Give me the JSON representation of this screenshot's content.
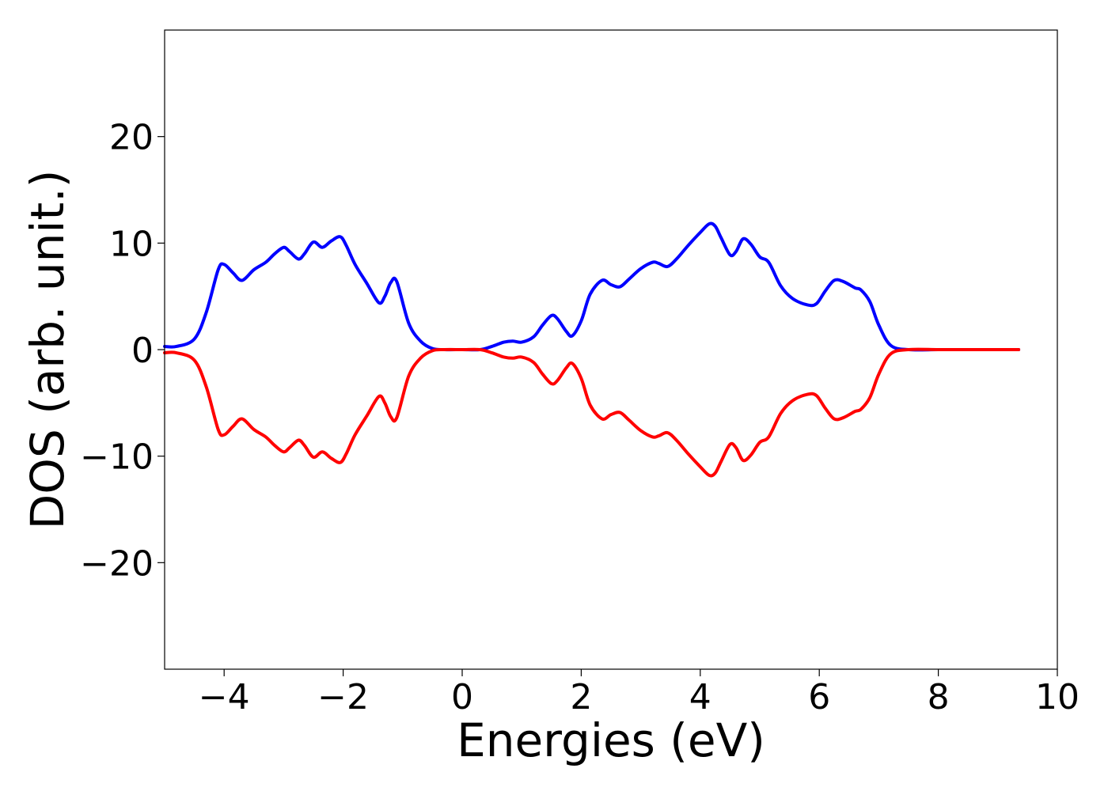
{
  "chart_data": {
    "type": "line",
    "title": "",
    "xlabel": "Energies (eV)",
    "ylabel": "DOS (arb. unit.)",
    "xlim": [
      -5,
      10
    ],
    "ylim": [
      -30,
      30
    ],
    "xticks": [
      -4,
      -2,
      0,
      2,
      4,
      6,
      8,
      10
    ],
    "xtick_labels": [
      "−4",
      "−2",
      "0",
      "2",
      "4",
      "6",
      "8",
      "10"
    ],
    "yticks": [
      -20,
      -10,
      0,
      10,
      20
    ],
    "ytick_labels": [
      "−20",
      "−10",
      "0",
      "10",
      "20"
    ],
    "grid": false,
    "legend": "none",
    "series": [
      {
        "color": "#0000ff",
        "x": [
          -5.0,
          -4.8,
          -4.5,
          -4.3,
          -4.1,
          -4.0,
          -3.85,
          -3.7,
          -3.5,
          -3.3,
          -3.15,
          -3.0,
          -2.9,
          -2.75,
          -2.65,
          -2.5,
          -2.35,
          -2.2,
          -2.05,
          -1.95,
          -1.8,
          -1.6,
          -1.4,
          -1.3,
          -1.2,
          -1.1,
          -0.9,
          -0.7,
          -0.5,
          -0.3,
          0.0,
          0.3,
          0.5,
          0.7,
          0.85,
          1.0,
          1.2,
          1.35,
          1.5,
          1.6,
          1.75,
          1.85,
          2.0,
          2.15,
          2.35,
          2.5,
          2.65,
          2.8,
          3.0,
          3.2,
          3.3,
          3.45,
          3.6,
          3.8,
          4.0,
          4.15,
          4.25,
          4.35,
          4.5,
          4.6,
          4.72,
          4.85,
          5.0,
          5.15,
          5.35,
          5.55,
          5.8,
          5.95,
          6.1,
          6.25,
          6.4,
          6.6,
          6.7,
          6.85,
          7.0,
          7.2,
          7.5,
          8.0,
          8.5,
          9.0,
          9.35
        ],
        "values": [
          0.3,
          0.3,
          1.0,
          3.5,
          7.5,
          8.0,
          7.2,
          6.5,
          7.5,
          8.2,
          9.0,
          9.6,
          9.2,
          8.5,
          9.0,
          10.1,
          9.6,
          10.2,
          10.6,
          9.8,
          8.0,
          6.2,
          4.4,
          5.0,
          6.3,
          6.4,
          2.5,
          0.8,
          0.1,
          0.0,
          0.0,
          0.0,
          0.3,
          0.7,
          0.8,
          0.7,
          1.2,
          2.3,
          3.2,
          2.9,
          1.7,
          1.3,
          2.7,
          5.2,
          6.5,
          6.1,
          5.9,
          6.6,
          7.6,
          8.2,
          8.1,
          7.8,
          8.5,
          9.8,
          11.0,
          11.8,
          11.6,
          10.5,
          8.9,
          9.2,
          10.4,
          9.9,
          8.7,
          8.2,
          6.0,
          4.8,
          4.2,
          4.3,
          5.5,
          6.5,
          6.4,
          5.8,
          5.6,
          4.5,
          2.3,
          0.4,
          0.0,
          0.0,
          0.0,
          0.0,
          0.0
        ]
      },
      {
        "color": "#ff0000",
        "x": [
          -5.0,
          -4.8,
          -4.5,
          -4.3,
          -4.1,
          -4.0,
          -3.85,
          -3.7,
          -3.5,
          -3.3,
          -3.15,
          -3.0,
          -2.9,
          -2.75,
          -2.65,
          -2.5,
          -2.35,
          -2.2,
          -2.05,
          -1.95,
          -1.8,
          -1.6,
          -1.4,
          -1.3,
          -1.2,
          -1.1,
          -0.9,
          -0.7,
          -0.5,
          -0.3,
          0.0,
          0.3,
          0.5,
          0.7,
          0.85,
          1.0,
          1.2,
          1.35,
          1.5,
          1.6,
          1.75,
          1.85,
          2.0,
          2.15,
          2.35,
          2.5,
          2.65,
          2.8,
          3.0,
          3.2,
          3.3,
          3.45,
          3.6,
          3.8,
          4.0,
          4.15,
          4.25,
          4.35,
          4.5,
          4.6,
          4.72,
          4.85,
          5.0,
          5.15,
          5.35,
          5.55,
          5.8,
          5.95,
          6.1,
          6.25,
          6.4,
          6.6,
          6.7,
          6.85,
          7.0,
          7.2,
          7.5,
          8.0,
          8.5,
          9.0,
          9.35
        ],
        "values": [
          -0.3,
          -0.3,
          -1.0,
          -3.5,
          -7.5,
          -8.0,
          -7.2,
          -6.5,
          -7.5,
          -8.2,
          -9.0,
          -9.6,
          -9.2,
          -8.5,
          -9.0,
          -10.1,
          -9.6,
          -10.2,
          -10.6,
          -9.8,
          -8.0,
          -6.2,
          -4.4,
          -5.0,
          -6.3,
          -6.4,
          -2.5,
          -0.8,
          -0.1,
          0.0,
          0.0,
          0.0,
          -0.3,
          -0.7,
          -0.8,
          -0.7,
          -1.2,
          -2.3,
          -3.2,
          -2.9,
          -1.7,
          -1.3,
          -2.7,
          -5.2,
          -6.5,
          -6.1,
          -5.9,
          -6.6,
          -7.6,
          -8.2,
          -8.1,
          -7.8,
          -8.5,
          -9.8,
          -11.0,
          -11.8,
          -11.6,
          -10.5,
          -8.9,
          -9.2,
          -10.4,
          -9.9,
          -8.7,
          -8.2,
          -6.0,
          -4.8,
          -4.2,
          -4.3,
          -5.5,
          -6.5,
          -6.4,
          -5.8,
          -5.6,
          -4.5,
          -2.3,
          -0.4,
          0.0,
          0.0,
          0.0,
          0.0,
          0.0
        ]
      }
    ]
  }
}
